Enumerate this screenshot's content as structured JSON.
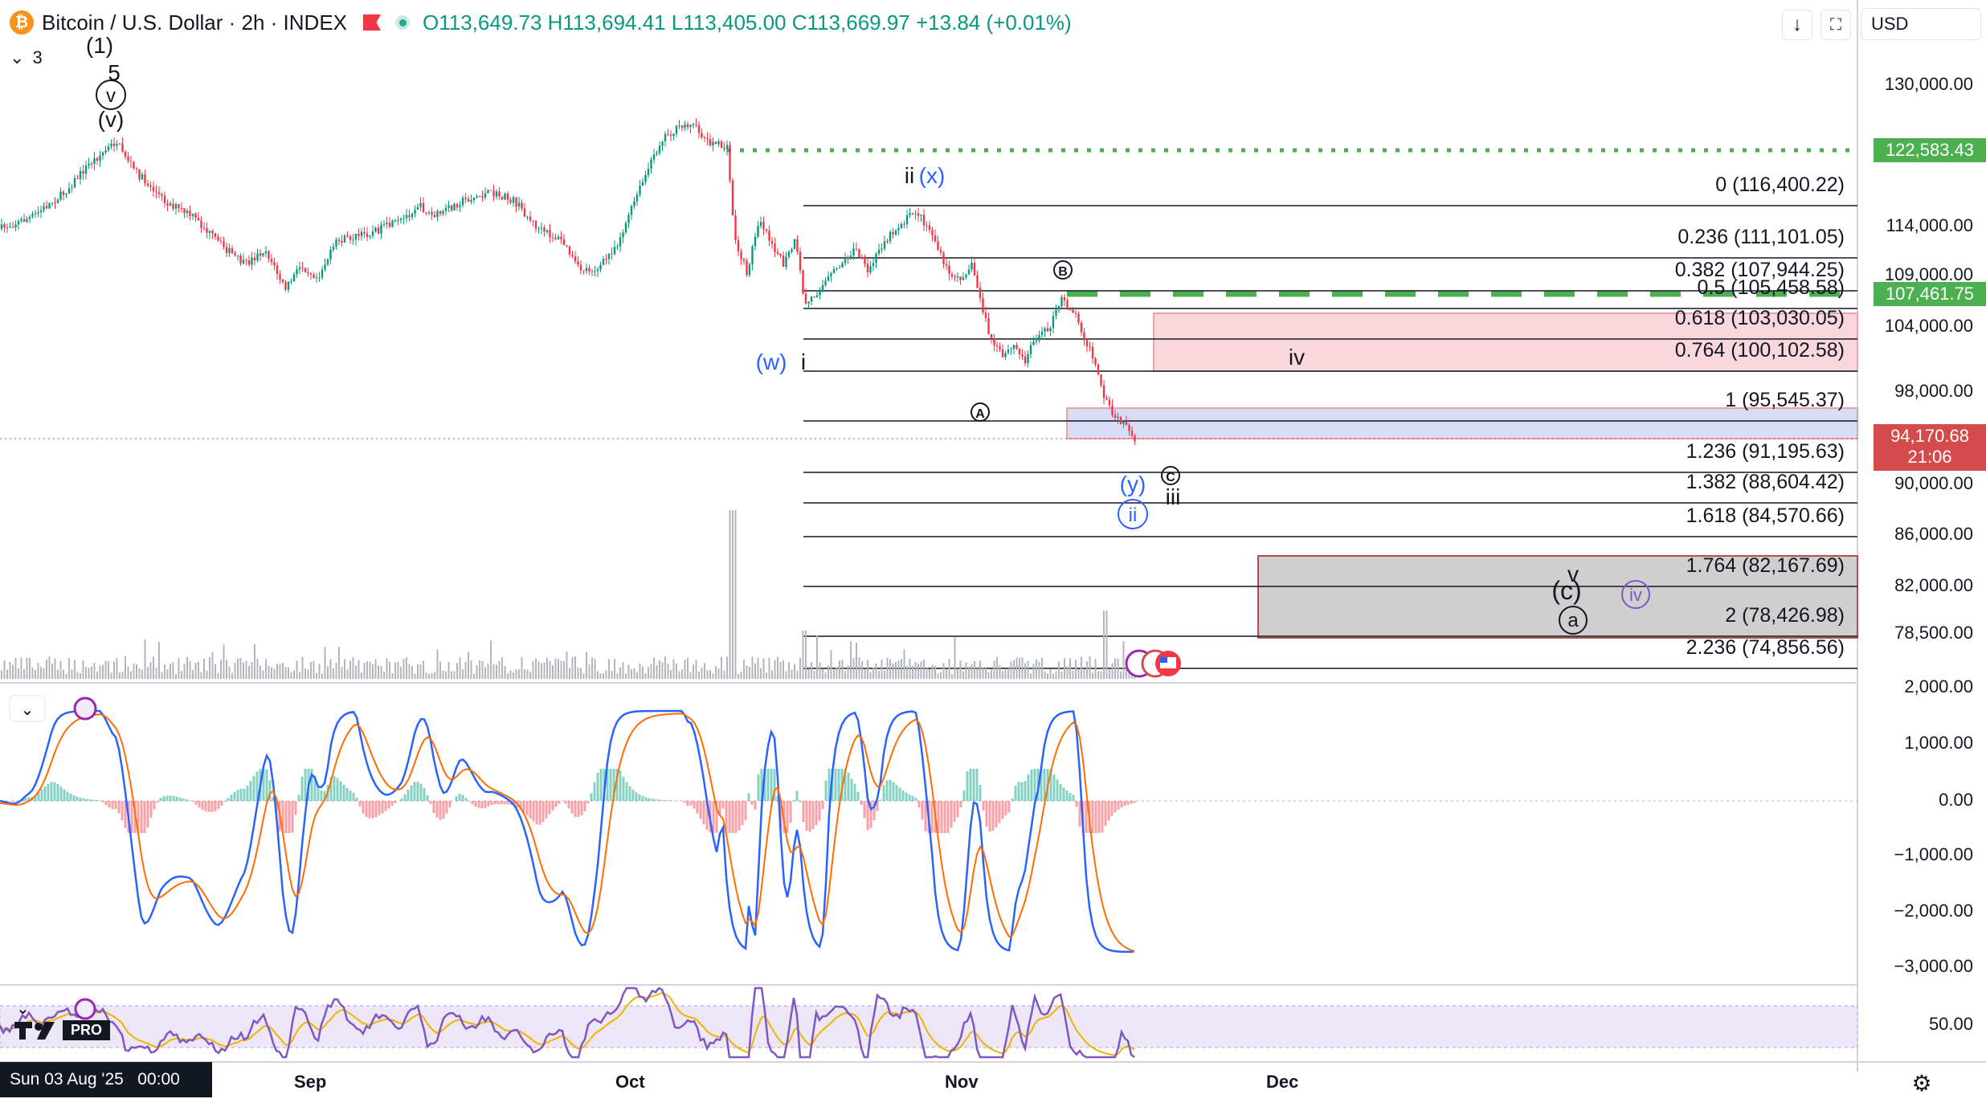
{
  "header": {
    "symbol_title": "Bitcoin / U.S. Dollar · 2h · INDEX",
    "open": "O113,649.73",
    "high": "H113,694.41",
    "low": "L113,405.00",
    "close": "C113,669.97",
    "change": "+13.84 (+0.01%)",
    "currency": "USD",
    "indicator_count": "3"
  },
  "price_axis": {
    "ticks": [
      "130,000.00",
      "114,000.00",
      "109,000.00",
      "104,000.00",
      "98,000.00",
      "90,000.00",
      "86,000.00",
      "82,000.00",
      "78,500.00"
    ],
    "resistance_tag": "122,583.43",
    "level_tag": "107,461.75",
    "last_price": "94,170.68",
    "countdown": "21:06"
  },
  "macd_axis": {
    "ticks": [
      "2,000.00",
      "1,000.00",
      "0.00",
      "−1,000.00",
      "−2,000.00",
      "−3,000.00"
    ]
  },
  "rsi_axis": {
    "ticks": [
      "50.00"
    ]
  },
  "time_axis": {
    "ticks": [
      "Sep",
      "Oct",
      "Nov",
      "Dec"
    ],
    "cursor_label": "Sun 03 Aug '25   00:00"
  },
  "fib_levels": [
    {
      "label": "0 (116,400.22)",
      "price": 116400.22
    },
    {
      "label": "0.236 (111,101.05)",
      "price": 111101.05
    },
    {
      "label": "0.382 (107,944.25)",
      "price": 107944.25
    },
    {
      "label": "0.5 (105,458.58)",
      "price": 105458.58
    },
    {
      "label": "0.618 (103,030.05)",
      "price": 103030.05
    },
    {
      "label": "0.764 (100,102.58)",
      "price": 100102.58
    },
    {
      "label": "1 (95,545.37)",
      "price": 95545.37
    },
    {
      "label": "1.236 (91,195.63)",
      "price": 91195.63
    },
    {
      "label": "1.382 (88,604.42)",
      "price": 88604.42
    },
    {
      "label": "1.618 (84,570.66)",
      "price": 84570.66
    },
    {
      "label": "1.764 (82,167.69)",
      "price": 82167.69
    },
    {
      "label": "2 (78,426.98)",
      "price": 78426.98
    },
    {
      "label": "2.236 (74,856.56)",
      "price": 74856.56
    }
  ],
  "wave_labels": {
    "w1": "(1)",
    "w5": "5",
    "wv_circle": "v",
    "wv_paren": "(v)",
    "ii": "ii",
    "x": "(x)",
    "w": "(w)",
    "i": "i",
    "A": "A",
    "B": "B",
    "C": "C",
    "iii": "iii",
    "y": "(y)",
    "ii_circle": "ii",
    "iv": "iv",
    "v": "v",
    "c": "(c)",
    "a": "a",
    "iv_circle": "iv"
  },
  "branding": {
    "pro_badge": "PRO"
  },
  "colors": {
    "up": "#089981",
    "down": "#f23645",
    "fib_line": "#131722",
    "red_zone": "#f9d7dc",
    "blue_zone": "#d8ddf5",
    "gray_zone": "#cfcfcf",
    "green_dotted": "#4caf50",
    "last_price": "#d54b4b",
    "macd": "#2962ff",
    "signal": "#ff6d00",
    "rsi": "#7e57c2"
  }
}
